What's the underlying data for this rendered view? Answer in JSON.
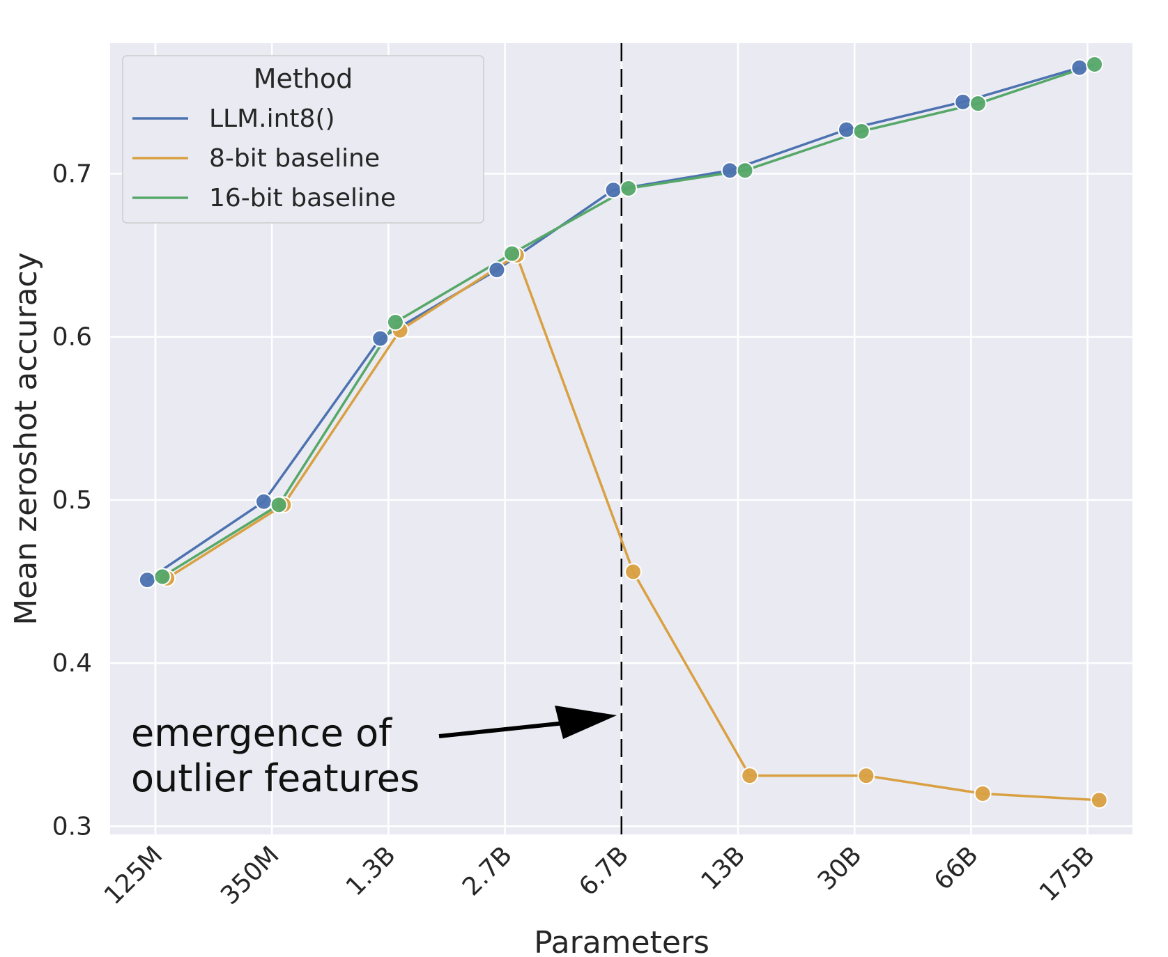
{
  "chart_data": {
    "type": "line",
    "title": "",
    "xlabel": "Parameters",
    "ylabel": "Mean zeroshot accuracy",
    "categories": [
      "125M",
      "350M",
      "1.3B",
      "2.7B",
      "6.7B",
      "13B",
      "30B",
      "66B",
      "175B"
    ],
    "ylim": [
      0.295,
      0.78
    ],
    "yticks": [
      0.3,
      0.4,
      0.5,
      0.6,
      0.7
    ],
    "ytick_labels": [
      "0.3",
      "0.4",
      "0.5",
      "0.6",
      "0.7"
    ],
    "grid": true,
    "legend": {
      "title": "Method",
      "position": "top-left",
      "entries": [
        "LLM.int8()",
        "8-bit baseline",
        "16-bit baseline"
      ]
    },
    "series": [
      {
        "name": "LLM.int8()",
        "color": "#4c72b0",
        "offset": -0.07,
        "values": [
          0.451,
          0.499,
          0.599,
          0.641,
          0.69,
          0.702,
          0.727,
          0.744,
          0.765
        ]
      },
      {
        "name": "8-bit baseline",
        "color": "#dd8452",
        "marker_color": "#d9a042",
        "offset": 0.1,
        "values": [
          0.452,
          0.497,
          0.604,
          0.65,
          0.456,
          0.331,
          0.331,
          0.32,
          0.316
        ]
      },
      {
        "name": "16-bit baseline",
        "color": "#55a868",
        "offset": 0.06,
        "values": [
          0.453,
          0.497,
          0.609,
          0.651,
          0.691,
          0.702,
          0.726,
          0.743,
          0.767
        ]
      }
    ],
    "vline": {
      "x": "6.7B",
      "style": "dashed"
    },
    "annotation": {
      "lines": [
        "emergence of",
        "outlier features"
      ],
      "arrow_target": "6.7B"
    }
  }
}
